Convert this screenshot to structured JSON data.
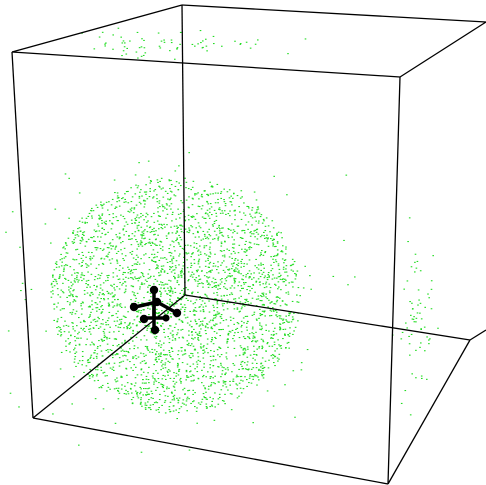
{
  "scene": {
    "background_color": "#ffffff",
    "box_color": "#000000",
    "particle_color": "#22dd22",
    "molecule_color": "#000000",
    "box_style": "perspective wireframe cube",
    "particle_clusters": [
      {
        "name": "main-cloud",
        "density": "dense",
        "region": "center-left"
      },
      {
        "name": "top-wrap-cluster",
        "density": "sparse",
        "region": "top"
      },
      {
        "name": "right-wrap-cluster",
        "density": "sparse",
        "region": "right"
      }
    ],
    "molecule": {
      "name": "ball-and-stick-molecule",
      "atoms": 7
    }
  }
}
